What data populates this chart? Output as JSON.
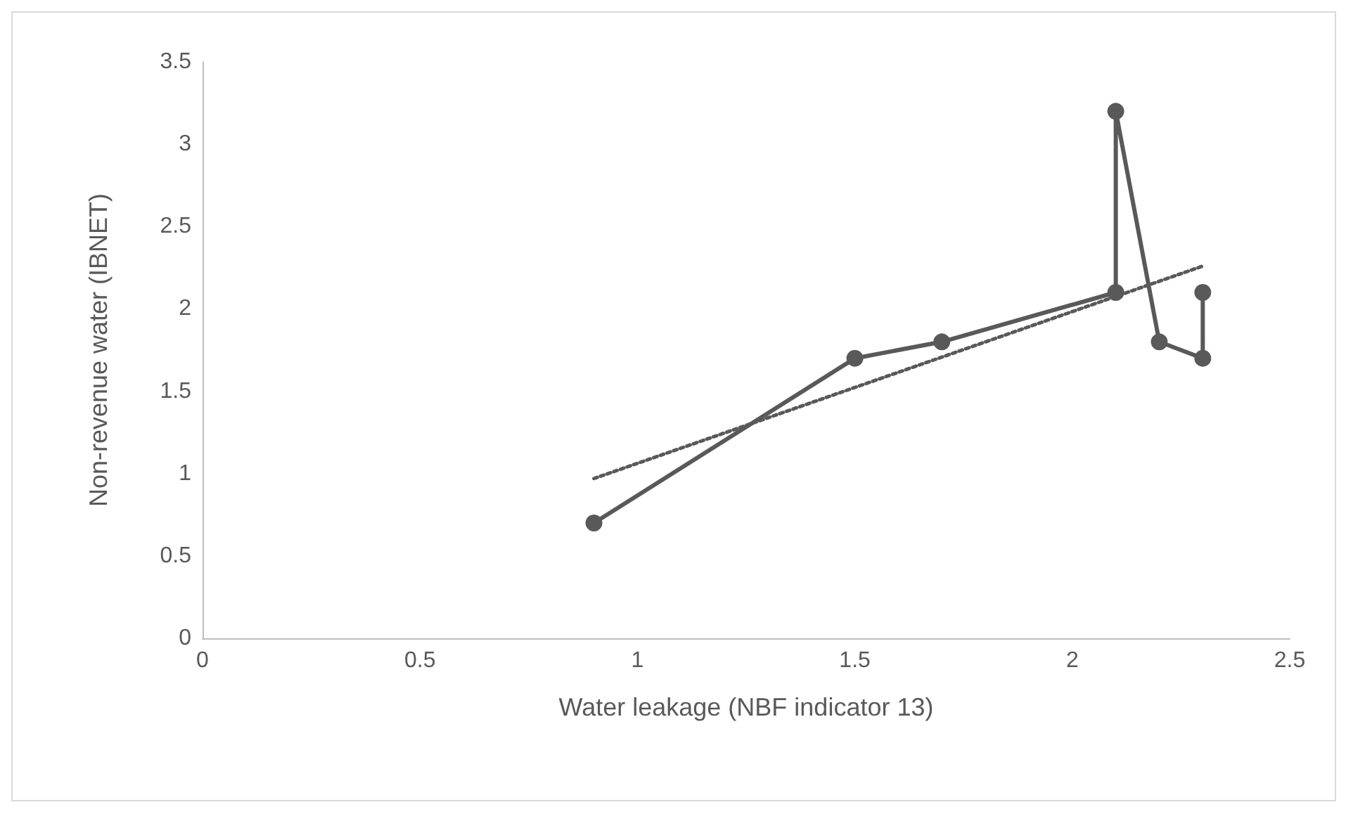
{
  "chart_data": {
    "type": "line",
    "xlabel": "Water leakage (NBF indicator 13)",
    "ylabel": "Non-revenue water (IBNET)",
    "series": [
      {
        "color": "#595959",
        "marker": "circle",
        "line_style": "solid",
        "x": [
          0.9,
          1.5,
          1.7,
          2.1,
          2.1,
          2.2,
          2.3,
          2.3
        ],
        "values": [
          0.7,
          1.7,
          1.8,
          2.1,
          3.2,
          1.8,
          1.7,
          2.1
        ]
      },
      {
        "color": "#595959",
        "marker": "none",
        "line_style": "dotted",
        "x": [
          0.9,
          2.3
        ],
        "values": [
          0.97,
          2.26
        ]
      }
    ],
    "xlim": [
      0,
      2.5
    ],
    "xticks": [
      0,
      0.5,
      1,
      1.5,
      2,
      2.5
    ],
    "ylim": [
      0,
      3.5
    ],
    "yticks": [
      0,
      0.5,
      1,
      1.5,
      2,
      2.5,
      3,
      3.5
    ],
    "grid": false
  }
}
